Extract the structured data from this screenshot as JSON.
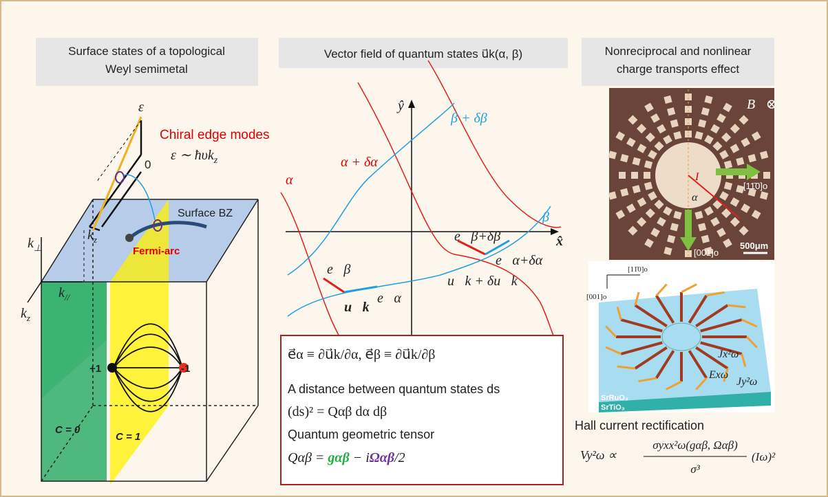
{
  "panels": [
    {
      "title": [
        "Surface states of a topological",
        "Weyl semimetal"
      ],
      "epsilon": "ε",
      "chiral": "Chiral edge modes",
      "zero": "0",
      "dispersion": {
        "main": "ε ∼ ħυk",
        "sub": "z"
      },
      "surface_bz": "Surface BZ",
      "fermi_arc": "Fermi-arc",
      "k_perp": {
        "main": "k",
        "sub": "⊥"
      },
      "k_par": {
        "main": "k",
        "sub": "//"
      },
      "kz_top": {
        "main": "k",
        "sub": "z"
      },
      "kz_side": {
        "main": "k",
        "sub": "z"
      },
      "plus_one": "+1",
      "minus_one": "-1",
      "c0": "C = 0",
      "c1": "C = 1"
    },
    {
      "title": "Vector field of quantum states u⃗k(α, β)",
      "y_axis": "ŷ",
      "x_axis": "x̂",
      "alpha": "α",
      "alpha_d": "α + δα",
      "beta_d": "β + δβ",
      "beta": "β",
      "e_beta": "e⃗β",
      "e_alpha": "e⃗α",
      "u_k": "u⃗k",
      "e_beta_d": "e⃗β+δβ",
      "e_alpha_d": "e⃗α+δα",
      "u_k_d": "u⃗k + δu⃗k",
      "box": [
        "e⃗α ≡ ∂u⃗k/∂α,  e⃗β ≡ ∂u⃗k/∂β",
        "A distance between quantum states ds",
        "(ds)² = Qαβ dα dβ",
        "Quantum geometric tensor"
      ],
      "tensor": {
        "lhs": "Qαβ = ",
        "g": "gαβ",
        "mid": " − i",
        "omega": "Ωαβ",
        "rhs": "/2"
      }
    },
    {
      "title": [
        "Nonreciprocal and nonlinear",
        "charge transports effect"
      ],
      "b_field": "B⃗⊗",
      "current": "I⃗",
      "angle": "α",
      "dir_110": "[11̄0]o",
      "dir_001": "[001]o",
      "scale": "500μm",
      "dir_110_b": "[11̄0]o",
      "dir_001_b": "[001]o",
      "jx": "Jx²ω",
      "ex": "Exω",
      "jy": "Jy²ω",
      "sro": "SrRuO₃",
      "sto": "SrTiO₃",
      "hall": "Hall current rectification",
      "formula": {
        "lhs": "Vy²ω ∝ ",
        "num": "σyxx²ω(gαβ, Ωαβ)",
        "den": "σ³",
        "rhs": "(Iω)²"
      }
    }
  ]
}
